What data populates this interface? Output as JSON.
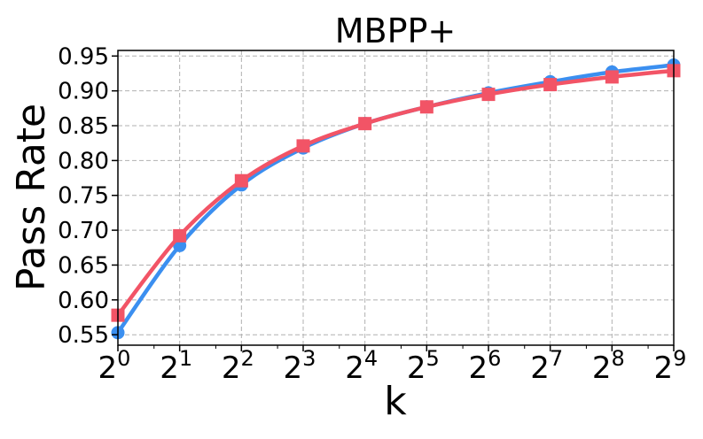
{
  "chart_data": {
    "type": "line",
    "title": "MBPP+",
    "xlabel": "k",
    "ylabel": "Pass Rate",
    "x_scale": "log2",
    "x": [
      1,
      2,
      4,
      8,
      16,
      32,
      64,
      128,
      256,
      512
    ],
    "x_tick_base": "2",
    "x_tick_exponents": [
      "0",
      "1",
      "2",
      "3",
      "4",
      "5",
      "6",
      "7",
      "8",
      "9"
    ],
    "yticks": [
      "0.55",
      "0.60",
      "0.65",
      "0.70",
      "0.75",
      "0.80",
      "0.85",
      "0.90",
      "0.95"
    ],
    "ylim": [
      0.535,
      0.958
    ],
    "grid": true,
    "series": [
      {
        "color": "#3b8ff0",
        "marker": "circle",
        "values": [
          0.553,
          0.678,
          0.765,
          0.818,
          0.853,
          0.877,
          0.897,
          0.913,
          0.927,
          0.937
        ]
      },
      {
        "color": "#f25466",
        "marker": "square",
        "values": [
          0.578,
          0.692,
          0.771,
          0.821,
          0.853,
          0.877,
          0.895,
          0.909,
          0.92,
          0.929
        ]
      }
    ]
  }
}
